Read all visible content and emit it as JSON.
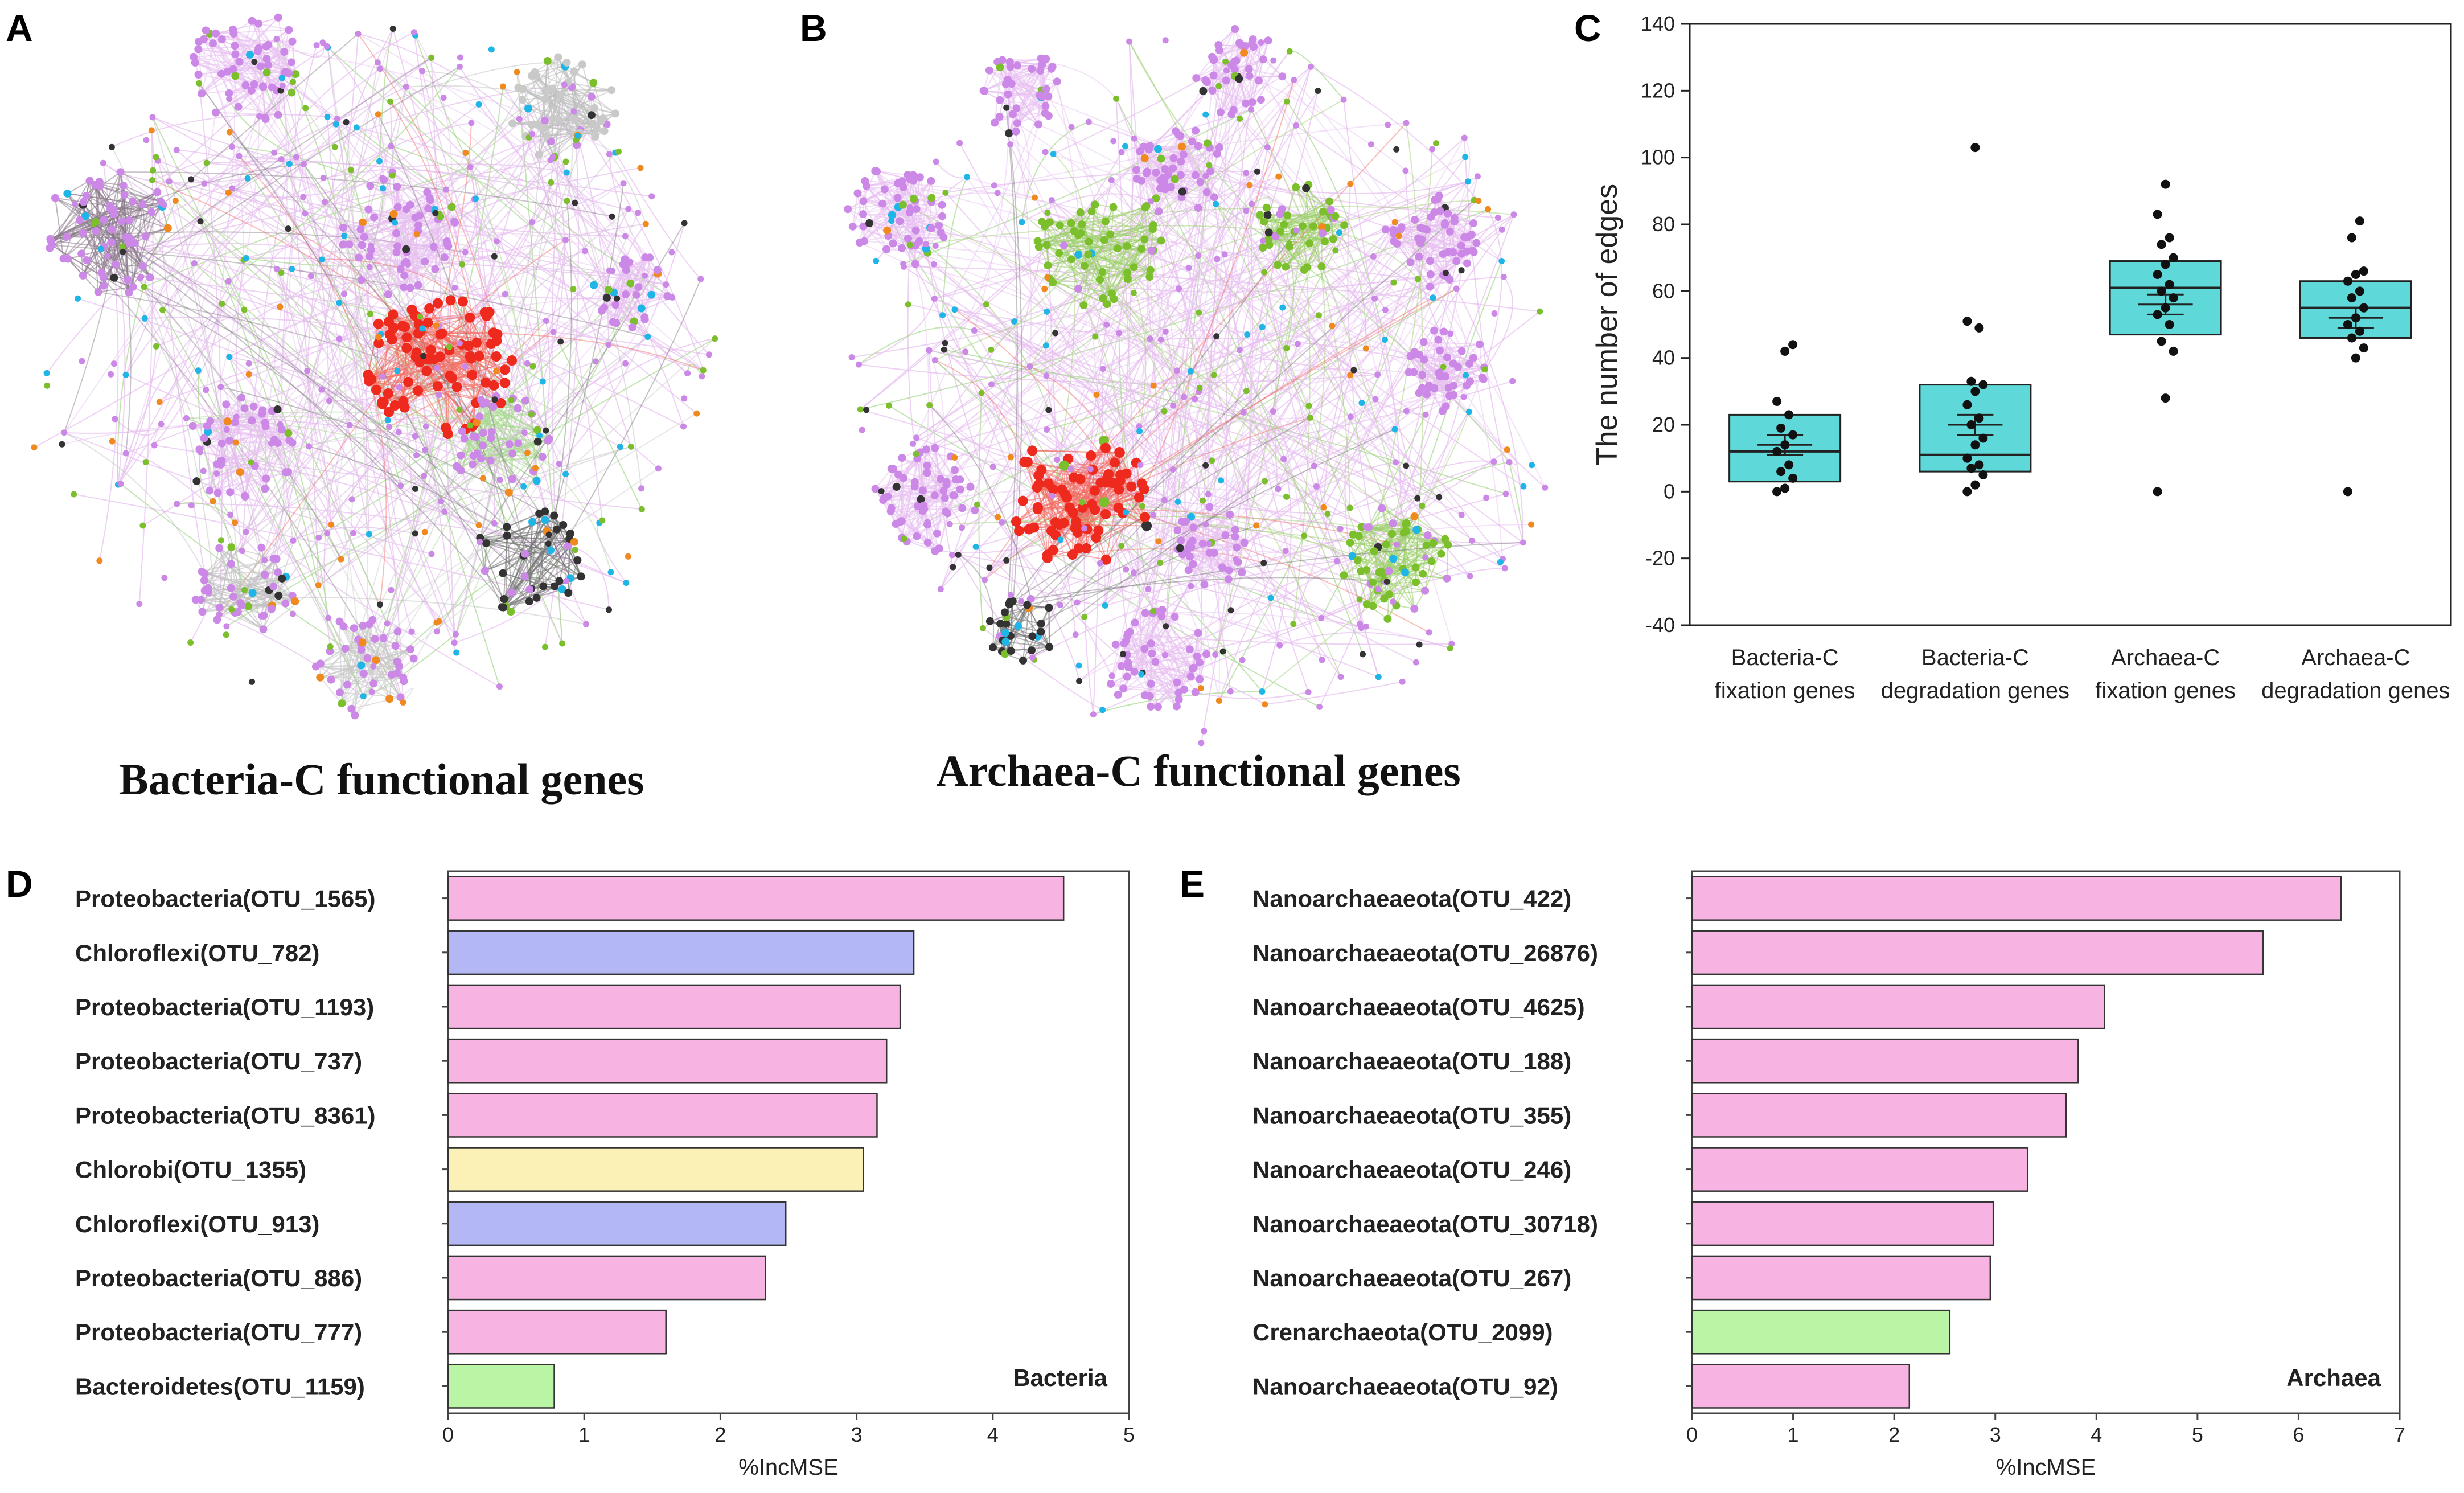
{
  "figure_panels": {
    "A": {
      "label": "A",
      "title": "Bacteria-C functional genes"
    },
    "B": {
      "label": "B",
      "title": "Archaea-C functional genes"
    }
  },
  "colors": {
    "network_pink": "#cc88e6",
    "network_edge": "#e7bff0",
    "network_red": "#ee2a1e",
    "network_green": "#7cbf2c",
    "network_blue": "#1fb5e6",
    "network_dark": "#333333",
    "network_orange": "#f08a1e",
    "box_fill": "#5ed8d8",
    "bar_pink": "#f7b3e1",
    "bar_blue": "#b3b7f3",
    "bar_yellow": "#fbf0b5",
    "bar_green": "#b9f5a5"
  },
  "chart_data": [
    {
      "panel": "C",
      "type": "box",
      "ylabel": "The number of edges",
      "ylim": [
        -40,
        140
      ],
      "yticks": [
        -40,
        -20,
        0,
        20,
        40,
        60,
        80,
        100,
        120,
        140
      ],
      "categories": [
        [
          "Bacteria-C",
          "fixation genes"
        ],
        [
          "Bacteria-C",
          "degradation genes"
        ],
        [
          "Archaea-C",
          "fixation genes"
        ],
        [
          "Archaea-C",
          "degradation genes"
        ]
      ],
      "boxes": [
        {
          "q1": 3,
          "median": 12,
          "q3": 23,
          "mean": 14,
          "se": 3
        },
        {
          "q1": 6,
          "median": 11,
          "q3": 32,
          "mean": 20,
          "se": 3
        },
        {
          "q1": 47,
          "median": 61,
          "q3": 69,
          "mean": 56,
          "se": 3
        },
        {
          "q1": 46,
          "median": 55,
          "q3": 63,
          "mean": 52,
          "se": 3
        }
      ],
      "points": [
        [
          0,
          1,
          4,
          6,
          8,
          12,
          14,
          17,
          19,
          23,
          27,
          42,
          44
        ],
        [
          0,
          2,
          5,
          7,
          8,
          10,
          14,
          16,
          20,
          22,
          26,
          30,
          32,
          33,
          49,
          51,
          103
        ],
        [
          0,
          28,
          42,
          45,
          50,
          53,
          55,
          58,
          60,
          62,
          65,
          68,
          70,
          74,
          76,
          83,
          92
        ],
        [
          0,
          40,
          43,
          46,
          48,
          50,
          52,
          55,
          58,
          60,
          63,
          65,
          66,
          76,
          81
        ]
      ]
    },
    {
      "panel": "D",
      "type": "bar",
      "orientation": "horizontal",
      "tag": "Bacteria",
      "xlabel": "%IncMSE",
      "xlim": [
        0,
        5
      ],
      "xticks": [
        0,
        1,
        2,
        3,
        4,
        5
      ],
      "categories": [
        "Proteobacteria(OTU_1565)",
        "Chloroflexi(OTU_782)",
        "Proteobacteria(OTU_1193)",
        "Proteobacteria(OTU_737)",
        "Proteobacteria(OTU_8361)",
        "Chlorobi(OTU_1355)",
        "Chloroflexi(OTU_913)",
        "Proteobacteria(OTU_886)",
        "Proteobacteria(OTU_777)",
        "Bacteroidetes(OTU_1159)"
      ],
      "values": [
        4.52,
        3.42,
        3.32,
        3.22,
        3.15,
        3.05,
        2.48,
        2.33,
        1.6,
        0.78
      ],
      "groups": [
        "pink",
        "blue",
        "pink",
        "pink",
        "pink",
        "yellow",
        "blue",
        "pink",
        "pink",
        "green"
      ]
    },
    {
      "panel": "E",
      "type": "bar",
      "orientation": "horizontal",
      "tag": "Archaea",
      "xlabel": "%IncMSE",
      "xlim": [
        0,
        7
      ],
      "xticks": [
        0,
        1,
        2,
        3,
        4,
        5,
        6,
        7
      ],
      "categories": [
        "Nanoarchaeaeota(OTU_422)",
        "Nanoarchaeaeota(OTU_26876)",
        "Nanoarchaeaeota(OTU_4625)",
        "Nanoarchaeaeota(OTU_188)",
        "Nanoarchaeaeota(OTU_355)",
        "Nanoarchaeaeota(OTU_246)",
        "Nanoarchaeaeota(OTU_30718)",
        "Nanoarchaeaeota(OTU_267)",
        "Crenarchaeota(OTU_2099)",
        "Nanoarchaeaeota(OTU_92)"
      ],
      "values": [
        6.42,
        5.65,
        4.08,
        3.82,
        3.7,
        3.32,
        2.98,
        2.95,
        2.55,
        2.15
      ],
      "groups": [
        "pink",
        "pink",
        "pink",
        "pink",
        "pink",
        "pink",
        "pink",
        "pink",
        "green",
        "pink"
      ]
    }
  ]
}
